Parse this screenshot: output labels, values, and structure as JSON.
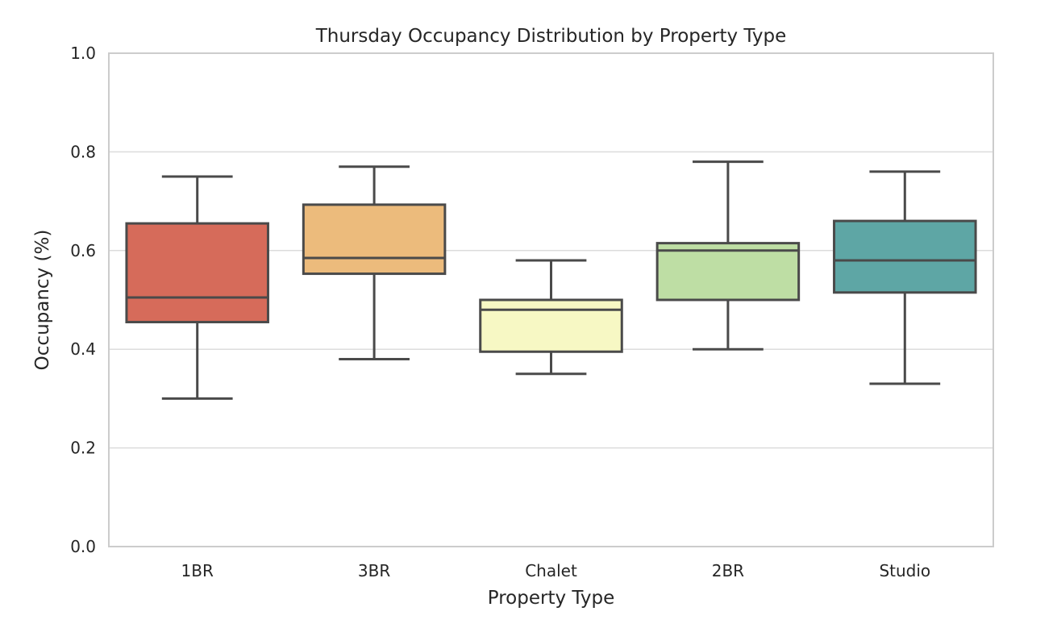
{
  "chart_data": {
    "type": "box",
    "title": "Thursday Occupancy Distribution by Property Type",
    "xlabel": "Property Type",
    "ylabel": "Occupancy (%)",
    "ylim": [
      0.0,
      1.0
    ],
    "yticks": [
      "0.0",
      "0.2",
      "0.4",
      "0.6",
      "0.8",
      "1.0"
    ],
    "ytick_values": [
      0.0,
      0.2,
      0.4,
      0.6,
      0.8,
      1.0
    ],
    "grid": true,
    "categories": [
      "1BR",
      "3BR",
      "Chalet",
      "2BR",
      "Studio"
    ],
    "boxes": [
      {
        "category": "1BR",
        "whisker_low": 0.3,
        "q1": 0.455,
        "median": 0.505,
        "q3": 0.655,
        "whisker_high": 0.75,
        "color": "#d66b5a"
      },
      {
        "category": "3BR",
        "whisker_low": 0.38,
        "q1": 0.553,
        "median": 0.585,
        "q3": 0.693,
        "whisker_high": 0.77,
        "color": "#ecbb7c"
      },
      {
        "category": "Chalet",
        "whisker_low": 0.35,
        "q1": 0.395,
        "median": 0.48,
        "q3": 0.5,
        "whisker_high": 0.58,
        "color": "#f7f8c4"
      },
      {
        "category": "2BR",
        "whisker_low": 0.4,
        "q1": 0.5,
        "median": 0.6,
        "q3": 0.615,
        "whisker_high": 0.78,
        "color": "#bedea4"
      },
      {
        "category": "Studio",
        "whisker_low": 0.33,
        "q1": 0.515,
        "median": 0.58,
        "q3": 0.66,
        "whisker_high": 0.76,
        "color": "#5ea6a5"
      }
    ]
  }
}
